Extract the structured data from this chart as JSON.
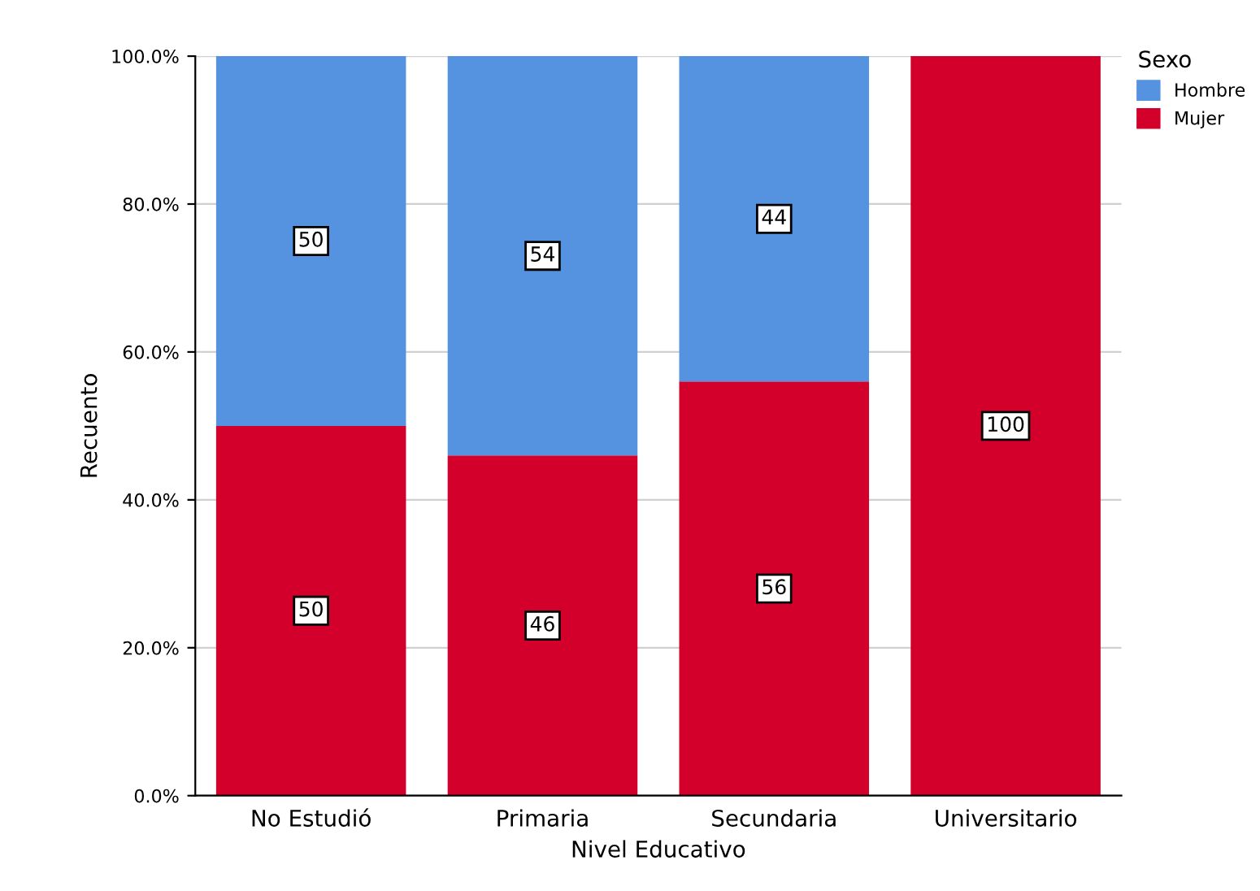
{
  "chart_data": {
    "type": "bar",
    "stacked": true,
    "xlabel": "Nivel Educativo",
    "ylabel": "Recuento",
    "legend_title": "Sexo",
    "legend": "top right",
    "categories": [
      "No Estudió",
      "Primaria",
      "Secundaria",
      "Universitario"
    ],
    "series": [
      {
        "name": "Mujer",
        "color": "#d2002a",
        "values": [
          50,
          46,
          56,
          100
        ],
        "value_labels": [
          "50",
          "46",
          "56",
          "100"
        ]
      },
      {
        "name": "Hombre",
        "color": "#5592e0",
        "values": [
          50,
          54,
          44,
          0
        ],
        "value_labels": [
          "50",
          "54",
          "44",
          null
        ]
      }
    ],
    "ylim": [
      0,
      100
    ],
    "yticks": [
      {
        "value": 0,
        "label": "0.0%"
      },
      {
        "value": 20,
        "label": "20.0%"
      },
      {
        "value": 40,
        "label": "40.0%"
      },
      {
        "value": 60,
        "label": "60.0%"
      },
      {
        "value": 80,
        "label": "80.0%"
      },
      {
        "value": 100,
        "label": "100.0%"
      }
    ],
    "grid": "y"
  }
}
